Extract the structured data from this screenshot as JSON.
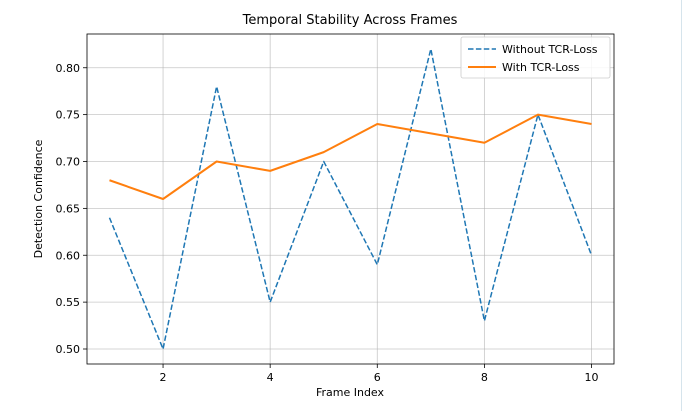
{
  "chart_data": {
    "type": "line",
    "title": "Temporal Stability Across Frames",
    "xlabel": "Frame Index",
    "ylabel": "Detection Confidence",
    "x": [
      1,
      2,
      3,
      4,
      5,
      6,
      7,
      8,
      9,
      10
    ],
    "xlim": [
      0.58,
      10.42
    ],
    "ylim": [
      0.484,
      0.836
    ],
    "xticks": [
      2,
      4,
      6,
      8,
      10
    ],
    "yticks": [
      0.5,
      0.55,
      0.6,
      0.65,
      0.7,
      0.75,
      0.8
    ],
    "grid": true,
    "legend_position": "top-right",
    "series": [
      {
        "name": "Without TCR-Loss",
        "values": [
          0.64,
          0.5,
          0.78,
          0.55,
          0.7,
          0.59,
          0.82,
          0.53,
          0.75,
          0.6
        ],
        "color": "#1f77b4",
        "style": "dashed"
      },
      {
        "name": "With TCR-Loss",
        "values": [
          0.68,
          0.66,
          0.7,
          0.69,
          0.71,
          0.74,
          0.73,
          0.72,
          0.75,
          0.74
        ],
        "color": "#ff7f0e",
        "style": "solid"
      }
    ]
  }
}
